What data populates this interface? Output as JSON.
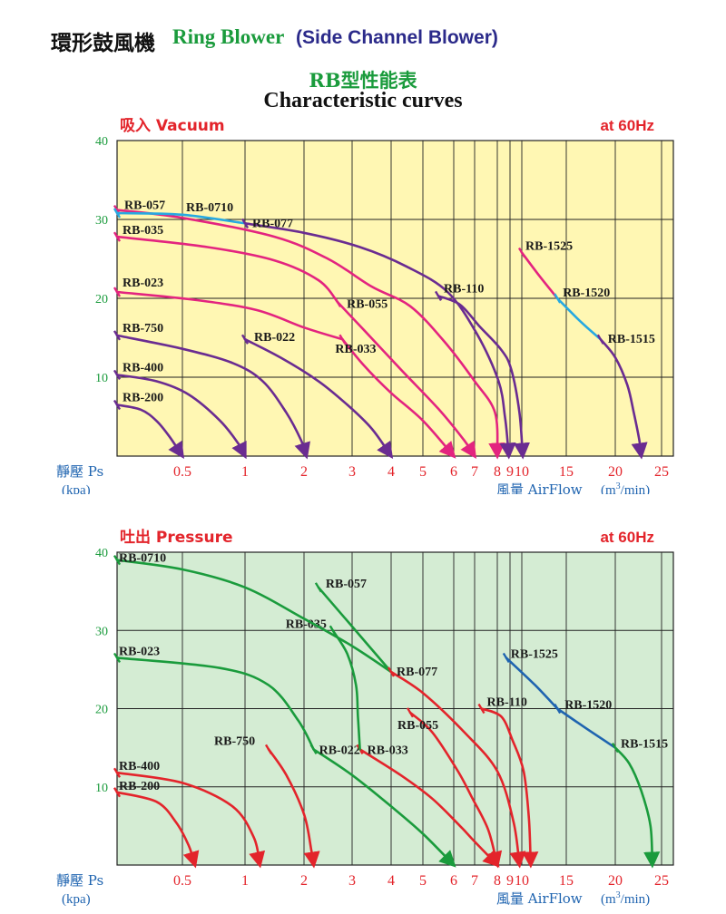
{
  "header": {
    "title_cn": "環形鼓風機",
    "title_en": "Ring Blower",
    "title_alt": "(Side Channel Blower)",
    "table_title": "RB型性能表",
    "table_subtitle": "Characteristic curves"
  },
  "colors": {
    "green": "#1a9b3c",
    "navy": "#2b2a8a",
    "red": "#e3242b",
    "magenta": "#e3247f",
    "purple": "#6a2c91",
    "cyan": "#27a9e1",
    "blue": "#1f64b0",
    "vacuum_bg": "#fff7b3",
    "pressure_bg": "#d4ecd3"
  },
  "chart_data": [
    {
      "type": "line",
      "title": "吸入 Vacuum",
      "freq": "at 60Hz",
      "ylabel_main": "靜壓 Ps",
      "ylabel_unit": "(kpa)",
      "xlabel_main": "風量 AirFlow",
      "xlabel_unit_pre": "(m",
      "xlabel_unit_sup": "3",
      "xlabel_unit_post": "/min)",
      "ylim": [
        0,
        40
      ],
      "y_ticks": [
        "10",
        "20",
        "30",
        "40"
      ],
      "x_ticks": [
        "0.5",
        "1",
        "2",
        "3",
        "4",
        "5",
        "6",
        "7",
        "8",
        "9",
        "10",
        "15",
        "20",
        "25"
      ],
      "grid": true,
      "series": [
        {
          "name": "RB-200",
          "points": [
            [
              0,
              6.5
            ],
            [
              0.18,
              5.9
            ],
            [
              0.3,
              4.5
            ],
            [
              0.4,
              2.5
            ],
            [
              0.5,
              0
            ]
          ]
        },
        {
          "name": "RB-400",
          "points": [
            [
              0,
              10.3
            ],
            [
              0.3,
              9.5
            ],
            [
              0.55,
              7.8
            ],
            [
              0.8,
              4.5
            ],
            [
              0.95,
              1.5
            ],
            [
              1,
              0
            ]
          ]
        },
        {
          "name": "RB-750",
          "points": [
            [
              0,
              15.3
            ],
            [
              0.5,
              13.6
            ],
            [
              0.9,
              11.8
            ],
            [
              1.3,
              9.5
            ],
            [
              1.7,
              5.5
            ],
            [
              1.95,
              2
            ],
            [
              2.05,
              0
            ]
          ]
        },
        {
          "name": "RB-022",
          "points": [
            [
              1,
              14.8
            ],
            [
              1.6,
              12.5
            ],
            [
              2.3,
              9.5
            ],
            [
              2.9,
              6.5
            ],
            [
              3.5,
              3.5
            ],
            [
              4,
              0
            ]
          ]
        },
        {
          "name": "RB-023",
          "points": [
            [
              0,
              20.8
            ],
            [
              0.6,
              19.8
            ],
            [
              1.2,
              18.5
            ],
            [
              2,
              16.3
            ],
            [
              2.8,
              14.8
            ]
          ]
        },
        {
          "name": "RB-033",
          "points": [
            [
              2.8,
              14.8
            ],
            [
              3.3,
              11.5
            ],
            [
              4,
              8
            ],
            [
              5,
              4.5
            ],
            [
              6,
              0
            ]
          ]
        },
        {
          "name": "RB-035",
          "points": [
            [
              0,
              27.8
            ],
            [
              0.7,
              26.5
            ],
            [
              1.5,
              24.8
            ],
            [
              2.3,
              22.3
            ],
            [
              2.7,
              19.5
            ]
          ]
        },
        {
          "name": "RB-055",
          "points": [
            [
              2.7,
              19.5
            ],
            [
              3.3,
              16
            ],
            [
              4.3,
              11
            ],
            [
              5.5,
              6
            ],
            [
              6.5,
              2
            ],
            [
              7,
              0
            ]
          ]
        },
        {
          "name": "RB-057",
          "points": [
            [
              0,
              31.2
            ],
            [
              0.5,
              30.2
            ],
            [
              1.5,
              27.8
            ],
            [
              2.5,
              25
            ],
            [
              3.5,
              21.5
            ],
            [
              4.6,
              19
            ],
            [
              5.7,
              14.5
            ],
            [
              7,
              9.5
            ],
            [
              7.9,
              5.5
            ],
            [
              8,
              0
            ]
          ]
        },
        {
          "name": "RB-0710",
          "points": [
            [
              0,
              30.8
            ],
            [
              0.5,
              30.6
            ],
            [
              1,
              29.5
            ]
          ]
        },
        {
          "name": "RB-077",
          "points": [
            [
              1,
              29.5
            ],
            [
              2,
              28.3
            ],
            [
              3.2,
              26.5
            ],
            [
              4.5,
              24
            ],
            [
              5.8,
              20.8
            ],
            [
              7.1,
              15.5
            ],
            [
              8.1,
              9.5
            ],
            [
              8.6,
              5
            ],
            [
              8.8,
              2
            ],
            [
              8.9,
              0
            ]
          ]
        },
        {
          "name": "RB-110",
          "points": [
            [
              5.5,
              20.3
            ],
            [
              6.3,
              19.2
            ],
            [
              7.2,
              16.5
            ],
            [
              8.3,
              13.5
            ],
            [
              9.1,
              11
            ],
            [
              9.8,
              5.5
            ],
            [
              10.1,
              0
            ]
          ]
        },
        {
          "name": "RB-1525",
          "points": [
            [
              10,
              25.8
            ],
            [
              12,
              22.8
            ],
            [
              14,
              20
            ]
          ]
        },
        {
          "name": "RB-1520",
          "points": [
            [
              14,
              20
            ],
            [
              16.5,
              17
            ],
            [
              18.5,
              14.8
            ]
          ]
        },
        {
          "name": "RB-1515",
          "points": [
            [
              18.5,
              14.8
            ],
            [
              20,
              12.5
            ],
            [
              21.3,
              9
            ],
            [
              22,
              5.5
            ],
            [
              22.6,
              2
            ],
            [
              22.8,
              0
            ]
          ]
        }
      ]
    },
    {
      "type": "line",
      "title": "吐出 Pressure",
      "freq": "at 60Hz",
      "ylabel_main": "靜壓 Ps",
      "ylabel_unit": "(kpa)",
      "xlabel_main": "風量 AirFlow",
      "xlabel_unit_pre": "(m",
      "xlabel_unit_sup": "3",
      "xlabel_unit_post": "/min)",
      "ylim": [
        0,
        40
      ],
      "y_ticks": [
        "10",
        "20",
        "30",
        "40"
      ],
      "x_ticks": [
        "0.5",
        "1",
        "2",
        "3",
        "4",
        "5",
        "6",
        "7",
        "8",
        "9",
        "10",
        "15",
        "20",
        "25"
      ],
      "grid": true,
      "series": [
        {
          "name": "RB-200",
          "points": [
            [
              0,
              9.3
            ],
            [
              0.3,
              8.1
            ],
            [
              0.45,
              5.5
            ],
            [
              0.55,
              2.5
            ],
            [
              0.6,
              0
            ]
          ]
        },
        {
          "name": "RB-400",
          "points": [
            [
              0,
              11.8
            ],
            [
              0.5,
              10.5
            ],
            [
              0.9,
              7.5
            ],
            [
              1.15,
              3.5
            ],
            [
              1.25,
              0
            ]
          ]
        },
        {
          "name": "RB-750",
          "points": [
            [
              1.4,
              14.8
            ],
            [
              1.7,
              11.5
            ],
            [
              2,
              6.5
            ],
            [
              2.15,
              2
            ],
            [
              2.2,
              0
            ]
          ]
        },
        {
          "name": "RB-022",
          "points": [
            [
              2.2,
              14.8
            ],
            [
              3,
              11.5
            ],
            [
              4,
              7.5
            ],
            [
              5,
              4
            ],
            [
              6,
              0
            ]
          ]
        },
        {
          "name": "RB-023",
          "points": [
            [
              0,
              26.5
            ],
            [
              0.8,
              25.2
            ],
            [
              1.4,
              23
            ],
            [
              1.9,
              18.5
            ],
            [
              2.2,
              14.8
            ]
          ]
        },
        {
          "name": "RB-033",
          "points": [
            [
              3.2,
              14.8
            ],
            [
              4.3,
              11.5
            ],
            [
              5.3,
              8.5
            ],
            [
              6.3,
              5
            ],
            [
              7,
              3
            ],
            [
              8,
              0
            ]
          ]
        },
        {
          "name": "RB-035",
          "points": [
            [
              2.6,
              30
            ],
            [
              2.9,
              27
            ],
            [
              3.1,
              23
            ],
            [
              3.15,
              19
            ],
            [
              3.2,
              14.8
            ]
          ]
        },
        {
          "name": "RB-055",
          "points": [
            [
              4.6,
              19.5
            ],
            [
              5.3,
              17
            ],
            [
              6.2,
              12
            ],
            [
              6.9,
              8.5
            ],
            [
              7.6,
              4.5
            ],
            [
              8,
              0
            ]
          ]
        },
        {
          "name": "RB-057",
          "points": [
            [
              2.3,
              35.5
            ],
            [
              3,
              30.5
            ],
            [
              4,
              24.7
            ]
          ]
        },
        {
          "name": "RB-0710",
          "points": [
            [
              0,
              39
            ],
            [
              0.5,
              37.8
            ],
            [
              1,
              35.5
            ],
            [
              2,
              31.5
            ],
            [
              3,
              28
            ],
            [
              4,
              24.7
            ]
          ]
        },
        {
          "name": "RB-077",
          "points": [
            [
              4,
              24.7
            ],
            [
              5,
              22
            ],
            [
              6.5,
              17
            ],
            [
              8,
              12
            ],
            [
              9.3,
              5.5
            ],
            [
              9.8,
              0
            ]
          ]
        },
        {
          "name": "RB-110",
          "points": [
            [
              7.3,
              20
            ],
            [
              8.3,
              19
            ],
            [
              9.2,
              16
            ],
            [
              10.2,
              12
            ],
            [
              10.8,
              6
            ],
            [
              11,
              0
            ]
          ]
        },
        {
          "name": "RB-1525",
          "points": [
            [
              8.7,
              26.5
            ],
            [
              11.5,
              23
            ],
            [
              14,
              20
            ]
          ]
        },
        {
          "name": "RB-1520",
          "points": [
            [
              14,
              20
            ],
            [
              17,
              17.5
            ],
            [
              20,
              15
            ]
          ]
        },
        {
          "name": "RB-1515",
          "points": [
            [
              20,
              15
            ],
            [
              21.5,
              13
            ],
            [
              22.8,
              9.5
            ],
            [
              23.8,
              5
            ],
            [
              24,
              0
            ]
          ]
        }
      ]
    }
  ]
}
